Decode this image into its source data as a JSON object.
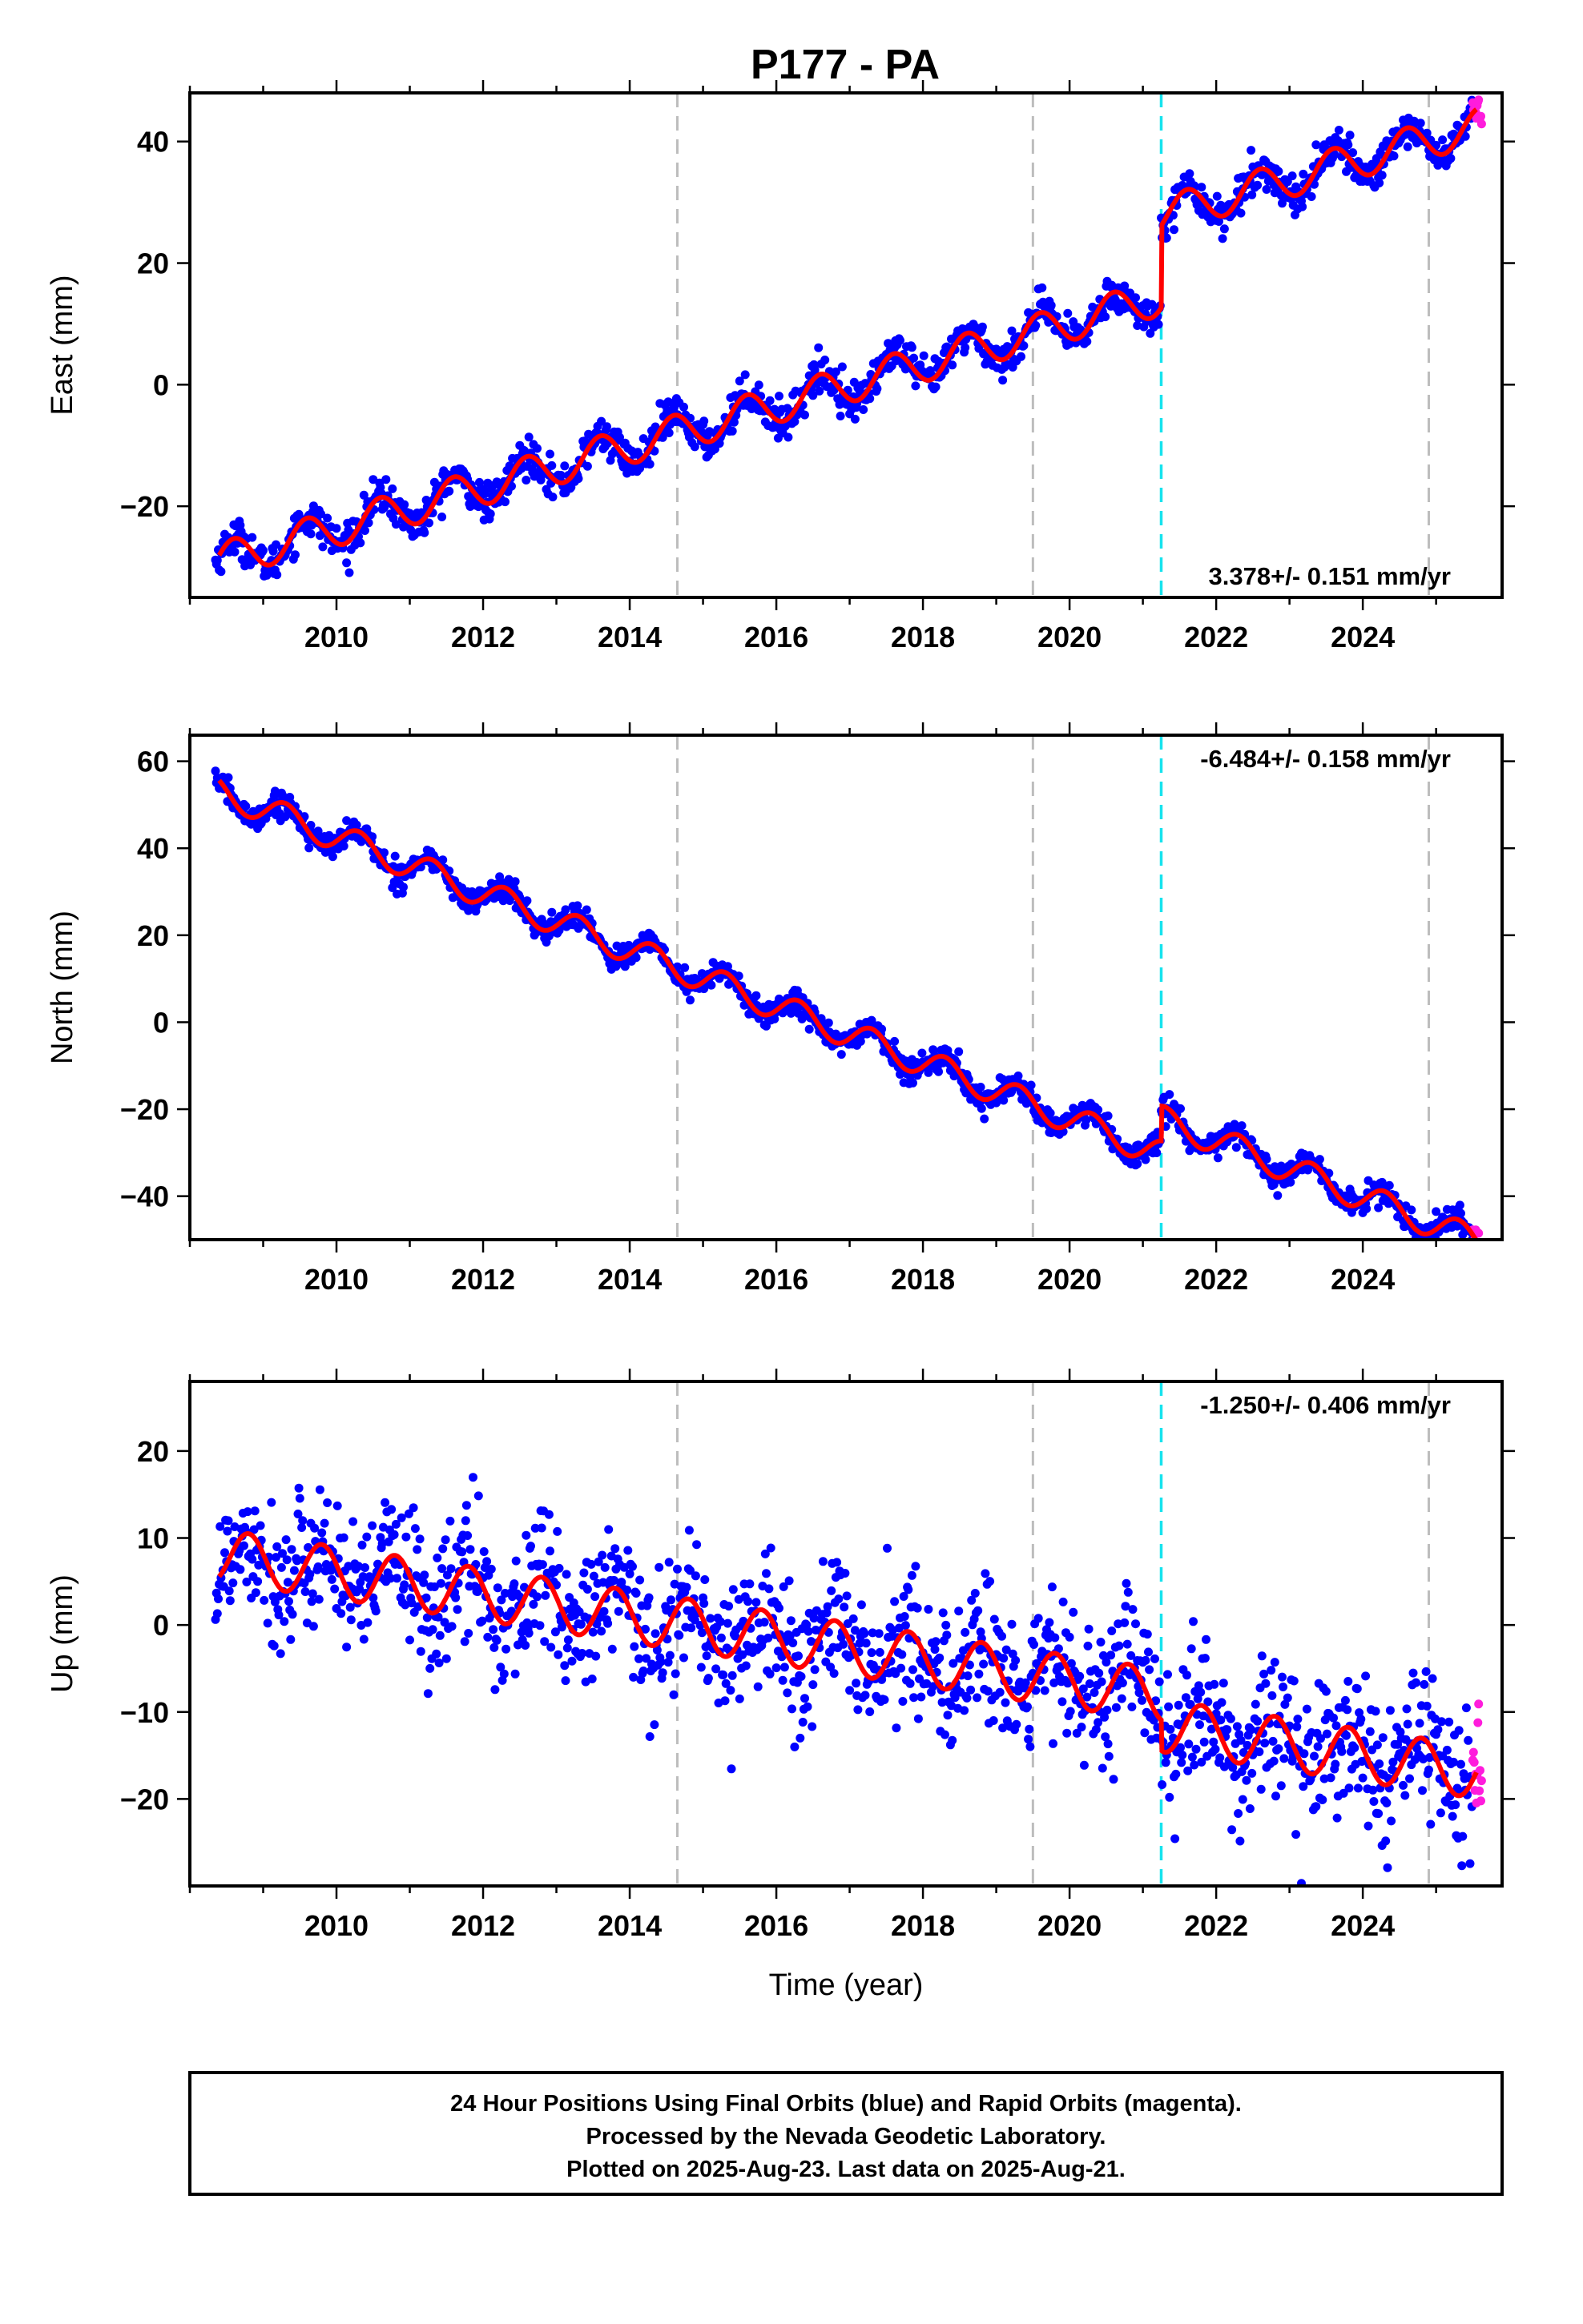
{
  "page_title": "P177 - PA",
  "caption": [
    "24 Hour Positions Using Final Orbits (blue) and Rapid Orbits (magenta).",
    "Processed by the Nevada Geodetic Laboratory.",
    "Plotted on 2025-Aug-23. Last data on 2025-Aug-21."
  ],
  "colors": {
    "final": "#0000ff",
    "rapid": "#ff1cdc",
    "model": "#ff0000",
    "equipment_change": "#bdbdbd",
    "earthquake": "#16e3ee"
  },
  "chart_data": [
    {
      "type": "scatter",
      "title": "P177 - PA",
      "xlabel": "",
      "ylabel": "East (mm)",
      "xlim": [
        2008.0,
        2025.9
      ],
      "ylim": [
        -35,
        48
      ],
      "xticks": [
        2010,
        2012,
        2014,
        2016,
        2018,
        2020,
        2022,
        2024
      ],
      "xtick_labels": [
        "2010",
        "2012",
        "2014",
        "2016",
        "2018",
        "2020",
        "2022",
        "2024"
      ],
      "yticks": [
        -20,
        0,
        20,
        40
      ],
      "ytick_labels": [
        "−20",
        "0",
        "20",
        "40"
      ],
      "rate_label": "3.378+/- 0.151 mm/yr",
      "vlines_gray": [
        2014.65,
        2019.5,
        2024.9
      ],
      "vlines_cyan": [
        2021.25
      ],
      "fit": {
        "start": 2008.4,
        "end": 2025.55,
        "y0": -29.0,
        "rate": 3.378,
        "amp": 3.0,
        "phase": 0.35,
        "steps": [
          {
            "t": 2021.25,
            "dy": 13.5
          }
        ]
      },
      "final": {
        "start": 2008.35,
        "end": 2025.5,
        "step": 0.0125,
        "noise": 1.5
      },
      "rapid": {
        "start": 2025.5,
        "end": 2025.62,
        "step": 0.01,
        "noise": 2.0
      }
    },
    {
      "type": "scatter",
      "xlabel": "",
      "ylabel": "North (mm)",
      "xlim": [
        2008.0,
        2025.9
      ],
      "ylim": [
        -50,
        66
      ],
      "xticks": [
        2010,
        2012,
        2014,
        2016,
        2018,
        2020,
        2022,
        2024
      ],
      "xtick_labels": [
        "2010",
        "2012",
        "2014",
        "2016",
        "2018",
        "2020",
        "2022",
        "2024"
      ],
      "yticks": [
        -40,
        -20,
        0,
        20,
        40,
        60
      ],
      "ytick_labels": [
        "−40",
        "−20",
        "0",
        "20",
        "40",
        "60"
      ],
      "rate_label": "-6.484+/- 0.158 mm/yr",
      "vlines_gray": [
        2014.65,
        2019.5,
        2024.9
      ],
      "vlines_cyan": [
        2021.25
      ],
      "fit": {
        "start": 2008.4,
        "end": 2025.55,
        "y0": 53.0,
        "rate": -6.484,
        "amp": 3.2,
        "phase": 0.05,
        "steps": [
          {
            "t": 2021.25,
            "dy": 8.0
          }
        ]
      },
      "final": {
        "start": 2008.35,
        "end": 2025.5,
        "step": 0.0125,
        "noise": 1.4
      },
      "rapid": {
        "start": 2025.5,
        "end": 2025.62,
        "step": 0.01,
        "noise": 2.0
      }
    },
    {
      "type": "scatter",
      "xlabel": "Time (year)",
      "ylabel": "Up (mm)",
      "xlim": [
        2008.0,
        2025.9
      ],
      "ylim": [
        -30,
        28
      ],
      "xticks": [
        2010,
        2012,
        2014,
        2016,
        2018,
        2020,
        2022,
        2024
      ],
      "xtick_labels": [
        "2010",
        "2012",
        "2014",
        "2016",
        "2018",
        "2020",
        "2022",
        "2024"
      ],
      "yticks": [
        -20,
        -10,
        0,
        10,
        20
      ],
      "ytick_labels": [
        "−20",
        "−10",
        "0",
        "10",
        "20"
      ],
      "rate_label": "-1.250+/- 0.406 mm/yr",
      "vlines_gray": [
        2014.65,
        2019.5,
        2024.9
      ],
      "vlines_cyan": [
        2021.25
      ],
      "fit": {
        "start": 2008.4,
        "end": 2025.55,
        "y0": 8.0,
        "rate": -1.25,
        "amp": 3.0,
        "phase": 0.55,
        "steps": [
          {
            "t": 2021.25,
            "dy": -3.5
          }
        ]
      },
      "final": {
        "start": 2008.35,
        "end": 2025.5,
        "step": 0.0125,
        "noise": 4.0
      },
      "rapid": {
        "start": 2025.5,
        "end": 2025.62,
        "step": 0.01,
        "noise": 3.5
      }
    }
  ]
}
